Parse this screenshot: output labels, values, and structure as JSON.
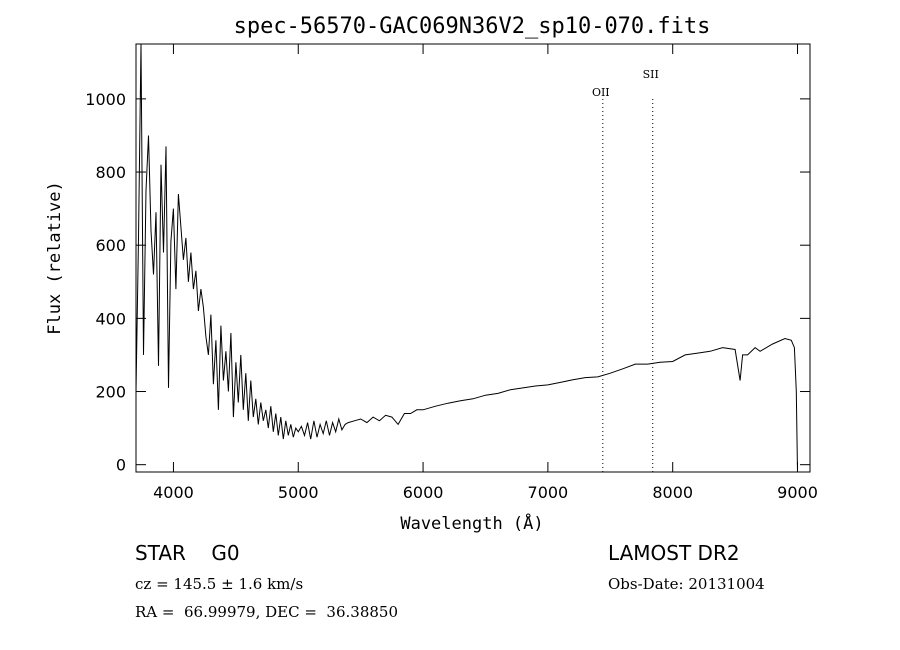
{
  "chart_data": {
    "type": "line",
    "title": "spec-56570-GAC069N36V2_sp10-070.fits",
    "xlabel": "Wavelength (Å)",
    "ylabel": "Flux (relative)",
    "xlim": [
      3700,
      9100
    ],
    "ylim": [
      -20,
      1150
    ],
    "xticks": [
      4000,
      5000,
      6000,
      7000,
      8000,
      9000
    ],
    "yticks": [
      0,
      200,
      400,
      600,
      800,
      1000
    ],
    "grid": false,
    "line_markers": [
      {
        "label": "OII",
        "x": 7440
      },
      {
        "label": "SII",
        "x": 7840
      }
    ],
    "series": [
      {
        "x": [
          3700,
          3720,
          3740,
          3760,
          3780,
          3800,
          3820,
          3840,
          3860,
          3880,
          3900,
          3920,
          3940,
          3960,
          3980,
          4000,
          4020,
          4040,
          4060,
          4080,
          4100,
          4120,
          4140,
          4160,
          4180,
          4200,
          4220,
          4240,
          4260,
          4280,
          4300,
          4320,
          4340,
          4360,
          4380,
          4400,
          4420,
          4440,
          4460,
          4480,
          4500,
          4520,
          4540,
          4560,
          4580,
          4600,
          4620,
          4640,
          4660,
          4680,
          4700,
          4720,
          4740,
          4760,
          4780,
          4800,
          4820,
          4840,
          4860,
          4880,
          4900,
          4920,
          4940,
          4960,
          4980,
          5000,
          5025,
          5050,
          5075,
          5100,
          5125,
          5150,
          5175,
          5200,
          5225,
          5250,
          5275,
          5300,
          5325,
          5350,
          5375,
          5400,
          5450,
          5500,
          5550,
          5600,
          5650,
          5700,
          5750,
          5800,
          5850,
          5900,
          5950,
          6000,
          6100,
          6200,
          6300,
          6400,
          6500,
          6600,
          6700,
          6800,
          6900,
          7000,
          7100,
          7200,
          7300,
          7400,
          7500,
          7600,
          7700,
          7800,
          7900,
          8000,
          8100,
          8200,
          8300,
          8400,
          8500,
          8540,
          8560,
          8600,
          8660,
          8700,
          8800,
          8900,
          8950,
          8975,
          8990,
          9000
        ],
        "y": [
          200,
          620,
          1160,
          300,
          750,
          900,
          640,
          520,
          690,
          270,
          820,
          580,
          870,
          210,
          610,
          700,
          480,
          740,
          650,
          560,
          620,
          500,
          580,
          480,
          530,
          420,
          480,
          430,
          350,
          300,
          410,
          220,
          340,
          150,
          380,
          230,
          310,
          200,
          360,
          130,
          280,
          170,
          300,
          150,
          250,
          120,
          230,
          130,
          180,
          110,
          170,
          120,
          150,
          100,
          160,
          90,
          140,
          80,
          130,
          70,
          120,
          80,
          110,
          75,
          100,
          90,
          105,
          80,
          115,
          70,
          120,
          75,
          110,
          85,
          120,
          80,
          115,
          90,
          125,
          95,
          110,
          115,
          120,
          125,
          115,
          130,
          120,
          135,
          130,
          110,
          140,
          140,
          150,
          150,
          160,
          168,
          175,
          180,
          190,
          195,
          205,
          210,
          215,
          218,
          225,
          232,
          238,
          240,
          250,
          262,
          275,
          275,
          280,
          282,
          300,
          305,
          310,
          320,
          315,
          230,
          300,
          300,
          320,
          310,
          330,
          345,
          340,
          320,
          200,
          -20
        ]
      }
    ]
  },
  "info": {
    "class": "STAR    G0",
    "survey": "LAMOST DR2",
    "cz": "cz = 145.5 ± 1.6 km/s",
    "obs_date": "Obs-Date: 20131004",
    "coords": "RA =  66.99979, DEC =  36.38850"
  }
}
